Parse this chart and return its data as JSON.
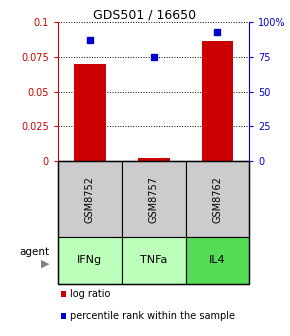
{
  "title": "GDS501 / 16650",
  "samples": [
    "GSM8752",
    "GSM8757",
    "GSM8762"
  ],
  "agents": [
    "IFNg",
    "TNFa",
    "IL4"
  ],
  "log_ratio": [
    0.07,
    0.002,
    0.086
  ],
  "percentile_rank": [
    87,
    75,
    93
  ],
  "bar_color": "#cc0000",
  "dot_color": "#0000cc",
  "ylim_left": [
    0,
    0.1
  ],
  "ylim_right": [
    0,
    100
  ],
  "yticks_left": [
    0,
    0.025,
    0.05,
    0.075,
    0.1
  ],
  "yticks_right": [
    0,
    25,
    50,
    75,
    100
  ],
  "ytick_labels_left": [
    "0",
    "0.025",
    "0.05",
    "0.075",
    "0.1"
  ],
  "ytick_labels_right": [
    "0",
    "25",
    "50",
    "75",
    "100%"
  ],
  "left_axis_color": "#cc0000",
  "right_axis_color": "#0000cc",
  "gsm_box_color": "#cccccc",
  "agent_box_color": "#bbffbb",
  "il4_box_color": "#55dd55",
  "background_color": "#ffffff",
  "bar_width": 0.5,
  "x_positions": [
    1,
    2,
    3
  ],
  "legend_log_ratio_label": "log ratio",
  "legend_percentile_label": "percentile rank within the sample"
}
